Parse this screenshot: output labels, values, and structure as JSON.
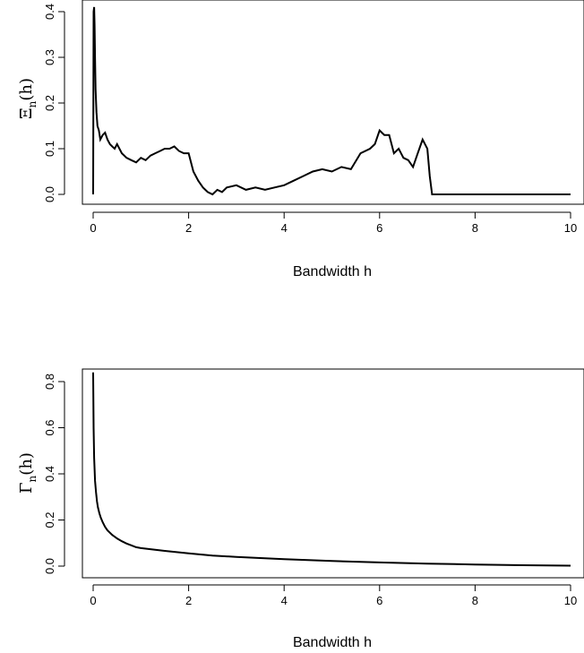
{
  "chart_data": [
    {
      "type": "line",
      "xlabel": "Bandwidth h",
      "ylabel": {
        "symbol": "Ξ",
        "subscript": "n",
        "arg": "(h)"
      },
      "xlim": [
        0,
        10
      ],
      "ylim": [
        0,
        0.4
      ],
      "xticks": [
        "0",
        "2",
        "4",
        "6",
        "8",
        "10"
      ],
      "yticks": [
        "0.0",
        "0.1",
        "0.2",
        "0.3",
        "0.4"
      ],
      "series": [
        {
          "x": [
            0.0,
            0.01,
            0.02,
            0.03,
            0.04,
            0.05,
            0.07,
            0.09,
            0.12,
            0.15,
            0.2,
            0.25,
            0.3,
            0.35,
            0.4,
            0.45,
            0.5,
            0.6,
            0.7,
            0.8,
            0.9,
            1.0,
            1.1,
            1.2,
            1.3,
            1.4,
            1.5,
            1.6,
            1.7,
            1.8,
            1.9,
            2.0,
            2.1,
            2.2,
            2.3,
            2.4,
            2.5,
            2.6,
            2.7,
            2.8,
            3.0,
            3.2,
            3.4,
            3.6,
            3.8,
            4.0,
            4.2,
            4.4,
            4.6,
            4.8,
            5.0,
            5.2,
            5.4,
            5.6,
            5.8,
            5.9,
            6.0,
            6.1,
            6.2,
            6.3,
            6.4,
            6.5,
            6.6,
            6.7,
            6.8,
            6.9,
            7.0,
            7.05,
            7.1,
            8.0,
            9.0,
            10.0
          ],
          "y": [
            0.0,
            0.4,
            0.41,
            0.37,
            0.3,
            0.23,
            0.18,
            0.15,
            0.14,
            0.12,
            0.13,
            0.135,
            0.12,
            0.11,
            0.105,
            0.1,
            0.11,
            0.09,
            0.08,
            0.075,
            0.07,
            0.08,
            0.075,
            0.085,
            0.09,
            0.095,
            0.1,
            0.1,
            0.105,
            0.095,
            0.09,
            0.09,
            0.05,
            0.03,
            0.015,
            0.005,
            0.0,
            0.01,
            0.005,
            0.015,
            0.02,
            0.01,
            0.015,
            0.01,
            0.015,
            0.02,
            0.03,
            0.04,
            0.05,
            0.055,
            0.05,
            0.06,
            0.055,
            0.09,
            0.1,
            0.11,
            0.14,
            0.13,
            0.13,
            0.09,
            0.1,
            0.08,
            0.075,
            0.06,
            0.09,
            0.12,
            0.1,
            0.04,
            0.0,
            0.0,
            0.0,
            0.0
          ]
        }
      ]
    },
    {
      "type": "line",
      "xlabel": "Bandwidth h",
      "ylabel": {
        "symbol": "Γ",
        "subscript": "n",
        "arg": "(h)"
      },
      "xlim": [
        0,
        10
      ],
      "ylim": [
        0,
        0.8
      ],
      "xticks": [
        "0",
        "2",
        "4",
        "6",
        "8",
        "10"
      ],
      "yticks": [
        "0.0",
        "0.2",
        "0.4",
        "0.6",
        "0.8"
      ],
      "series": [
        {
          "x": [
            0.0,
            0.01,
            0.02,
            0.04,
            0.06,
            0.08,
            0.1,
            0.13,
            0.16,
            0.2,
            0.25,
            0.3,
            0.4,
            0.5,
            0.6,
            0.7,
            0.8,
            0.9,
            1.0,
            1.5,
            2.0,
            2.5,
            3.0,
            4.0,
            5.0,
            6.0,
            7.0,
            8.0,
            9.0,
            10.0
          ],
          "y": [
            0.84,
            0.6,
            0.47,
            0.37,
            0.32,
            0.28,
            0.255,
            0.23,
            0.21,
            0.19,
            0.17,
            0.155,
            0.135,
            0.12,
            0.108,
            0.098,
            0.09,
            0.082,
            0.078,
            0.066,
            0.055,
            0.046,
            0.04,
            0.03,
            0.022,
            0.016,
            0.011,
            0.007,
            0.004,
            0.002
          ]
        }
      ]
    }
  ]
}
